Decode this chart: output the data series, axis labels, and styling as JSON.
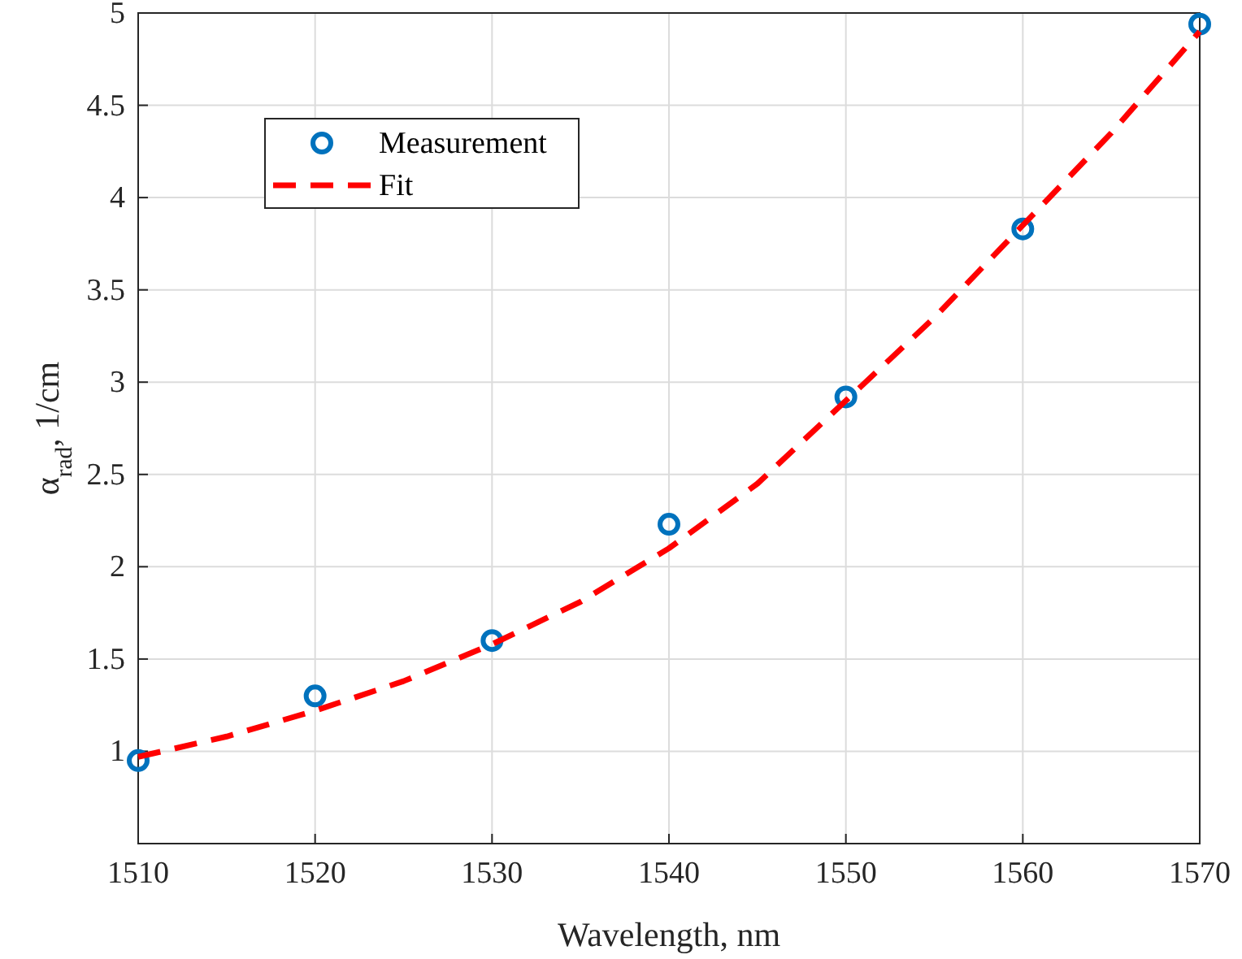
{
  "chart_data": {
    "type": "scatter",
    "xlabel": "Wavelength, nm",
    "ylabel": "α$_{rad}$, 1/cm",
    "x": [
      1510,
      1520,
      1530,
      1540,
      1550,
      1560,
      1570
    ],
    "series": [
      {
        "name": "Measurement",
        "color": "#0072bd",
        "marker": "circle",
        "values": [
          0.95,
          1.3,
          1.6,
          2.23,
          2.92,
          3.83,
          4.94
        ]
      },
      {
        "name": "Fit",
        "type": "line",
        "color": "#ff0000",
        "line_style": "dashed",
        "marker": "none",
        "x": [
          1510,
          1515,
          1520,
          1525,
          1530,
          1535,
          1540,
          1545,
          1550,
          1555,
          1560,
          1565,
          1570
        ],
        "values": [
          0.97,
          1.08,
          1.22,
          1.38,
          1.58,
          1.81,
          2.1,
          2.45,
          2.9,
          3.35,
          3.85,
          4.35,
          4.9
        ]
      }
    ],
    "xlim": [
      1510,
      1570
    ],
    "xticks": [
      1510,
      1520,
      1530,
      1540,
      1550,
      1560,
      1570
    ],
    "ylim": [
      0.5,
      5
    ],
    "yticks": [
      1,
      1.5,
      2,
      2.5,
      3,
      3.5,
      4,
      4.5,
      5
    ],
    "grid": true,
    "legend": "top left"
  }
}
